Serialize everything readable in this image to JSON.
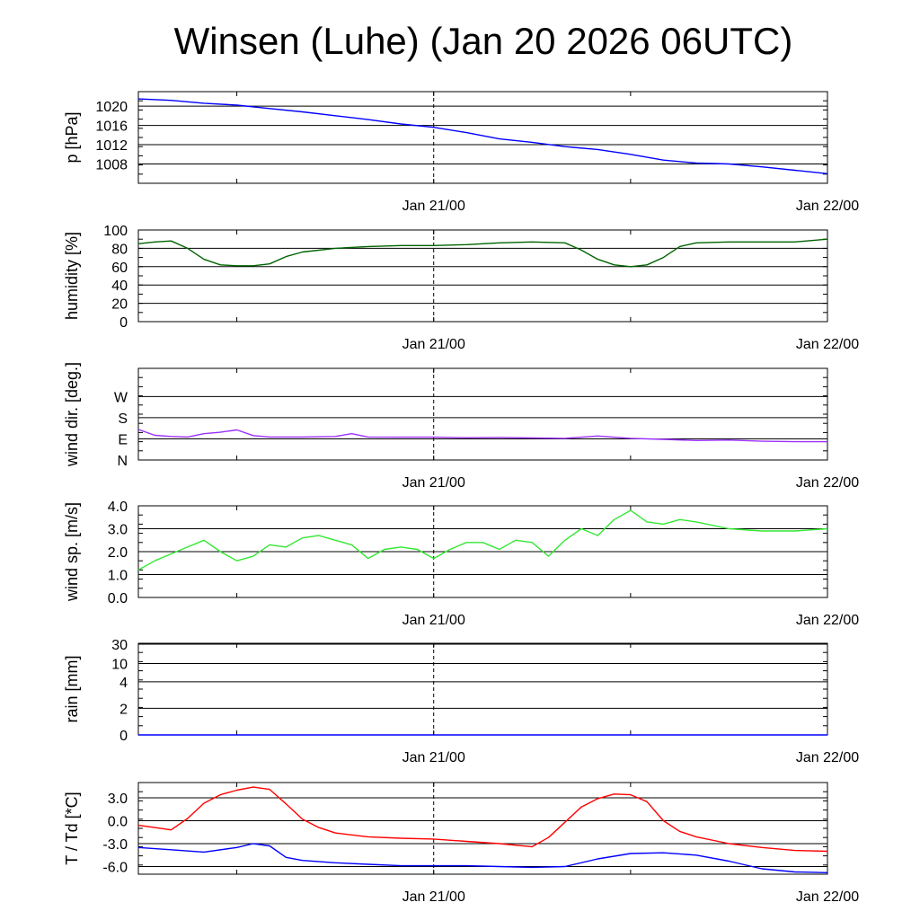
{
  "title": "Winsen (Luhe) (Jan 20 2026 06UTC)",
  "x_axis": {
    "tick_labels": [
      "Jan 21/00",
      "Jan 22/00"
    ],
    "start": "Jan 20 2026 06UTC",
    "end": "Jan 22 2026 00UTC",
    "midnight_marker": "Jan 21/00"
  },
  "chart_data": [
    {
      "type": "line",
      "ylabel": "p [hPa]",
      "ylim": [
        1004,
        1023
      ],
      "yticks": [
        1008,
        1012,
        1016,
        1020
      ],
      "grid": true,
      "series": [
        {
          "color": "#0000ff",
          "x": [
            "2026-01-20 06:00",
            "2026-01-20 08:00",
            "2026-01-20 10:00",
            "2026-01-20 12:00",
            "2026-01-20 14:00",
            "2026-01-20 16:00",
            "2026-01-20 18:00",
            "2026-01-20 20:00",
            "2026-01-20 22:00",
            "2026-01-21 00:00",
            "2026-01-21 02:00",
            "2026-01-21 04:00",
            "2026-01-21 06:00",
            "2026-01-21 08:00",
            "2026-01-21 10:00",
            "2026-01-21 12:00",
            "2026-01-21 14:00",
            "2026-01-21 16:00",
            "2026-01-21 18:00",
            "2026-01-21 20:00",
            "2026-01-21 22:00",
            "2026-01-22 00:00"
          ],
          "values": [
            1021.5,
            1021.2,
            1020.6,
            1020.2,
            1019.5,
            1018.8,
            1018.0,
            1017.2,
            1016.3,
            1015.6,
            1014.5,
            1013.2,
            1012.5,
            1011.6,
            1011.0,
            1010.0,
            1008.8,
            1008.2,
            1008.0,
            1007.4,
            1006.7,
            1006.0
          ]
        }
      ]
    },
    {
      "type": "line",
      "ylabel": "humidity [%]",
      "ylim": [
        0,
        100
      ],
      "yticks": [
        0,
        20,
        40,
        60,
        80,
        100
      ],
      "grid": true,
      "series": [
        {
          "color": "#006400",
          "x": [
            "2026-01-20 06:00",
            "2026-01-20 07:00",
            "2026-01-20 08:00",
            "2026-01-20 09:00",
            "2026-01-20 10:00",
            "2026-01-20 11:00",
            "2026-01-20 12:00",
            "2026-01-20 13:00",
            "2026-01-20 14:00",
            "2026-01-20 15:00",
            "2026-01-20 16:00",
            "2026-01-20 18:00",
            "2026-01-20 20:00",
            "2026-01-20 22:00",
            "2026-01-21 00:00",
            "2026-01-21 02:00",
            "2026-01-21 04:00",
            "2026-01-21 06:00",
            "2026-01-21 08:00",
            "2026-01-21 09:00",
            "2026-01-21 10:00",
            "2026-01-21 11:00",
            "2026-01-21 12:00",
            "2026-01-21 13:00",
            "2026-01-21 14:00",
            "2026-01-21 15:00",
            "2026-01-21 16:00",
            "2026-01-21 18:00",
            "2026-01-21 20:00",
            "2026-01-21 22:00",
            "2026-01-22 00:00"
          ],
          "values": [
            85,
            87,
            88,
            80,
            68,
            62,
            61,
            61,
            63,
            71,
            76,
            80,
            82,
            83,
            83,
            84,
            86,
            87,
            86,
            78,
            68,
            62,
            60,
            62,
            70,
            82,
            86,
            87,
            87,
            87,
            90
          ]
        }
      ]
    },
    {
      "type": "line",
      "ylabel": "wind dir. [deg.]",
      "ylim": [
        0,
        390
      ],
      "yticks": [
        0,
        90,
        180,
        270
      ],
      "ytick_labels": [
        "N",
        "E",
        "S",
        "W"
      ],
      "grid": true,
      "series": [
        {
          "color": "#9b30ff",
          "x": [
            "2026-01-20 06:00",
            "2026-01-20 07:00",
            "2026-01-20 08:00",
            "2026-01-20 09:00",
            "2026-01-20 10:00",
            "2026-01-20 11:00",
            "2026-01-20 12:00",
            "2026-01-20 13:00",
            "2026-01-20 14:00",
            "2026-01-20 16:00",
            "2026-01-20 18:00",
            "2026-01-20 19:00",
            "2026-01-20 20:00",
            "2026-01-20 22:00",
            "2026-01-21 00:00",
            "2026-01-21 02:00",
            "2026-01-21 04:00",
            "2026-01-21 06:00",
            "2026-01-21 08:00",
            "2026-01-21 10:00",
            "2026-01-21 12:00",
            "2026-01-21 14:00",
            "2026-01-21 16:00",
            "2026-01-21 18:00",
            "2026-01-21 20:00",
            "2026-01-21 22:00",
            "2026-01-22 00:00"
          ],
          "values": [
            130,
            105,
            100,
            98,
            112,
            118,
            128,
            104,
            98,
            98,
            100,
            112,
            98,
            97,
            97,
            95,
            96,
            94,
            92,
            102,
            92,
            88,
            83,
            85,
            80,
            78,
            78
          ]
        }
      ]
    },
    {
      "type": "line",
      "ylabel": "wind sp. [m/s]",
      "ylim": [
        0,
        4
      ],
      "yticks": [
        0,
        1,
        2,
        3,
        4
      ],
      "ytick_labels": [
        "0.0",
        "1.0",
        "2.0",
        "3.0",
        "4.0"
      ],
      "grid": true,
      "series": [
        {
          "color": "#33e833",
          "x": [
            "2026-01-20 06:00",
            "2026-01-20 07:00",
            "2026-01-20 08:00",
            "2026-01-20 09:00",
            "2026-01-20 10:00",
            "2026-01-20 11:00",
            "2026-01-20 12:00",
            "2026-01-20 13:00",
            "2026-01-20 14:00",
            "2026-01-20 15:00",
            "2026-01-20 16:00",
            "2026-01-20 17:00",
            "2026-01-20 18:00",
            "2026-01-20 19:00",
            "2026-01-20 20:00",
            "2026-01-20 21:00",
            "2026-01-20 22:00",
            "2026-01-20 23:00",
            "2026-01-21 00:00",
            "2026-01-21 01:00",
            "2026-01-21 02:00",
            "2026-01-21 03:00",
            "2026-01-21 04:00",
            "2026-01-21 05:00",
            "2026-01-21 06:00",
            "2026-01-21 07:00",
            "2026-01-21 08:00",
            "2026-01-21 09:00",
            "2026-01-21 10:00",
            "2026-01-21 11:00",
            "2026-01-21 12:00",
            "2026-01-21 13:00",
            "2026-01-21 14:00",
            "2026-01-21 15:00",
            "2026-01-21 16:00",
            "2026-01-21 18:00",
            "2026-01-21 20:00",
            "2026-01-21 22:00",
            "2026-01-22 00:00"
          ],
          "values": [
            1.2,
            1.6,
            1.9,
            2.2,
            2.5,
            2.0,
            1.6,
            1.8,
            2.3,
            2.2,
            2.6,
            2.7,
            2.5,
            2.3,
            1.7,
            2.1,
            2.2,
            2.1,
            1.7,
            2.1,
            2.4,
            2.4,
            2.1,
            2.5,
            2.4,
            1.8,
            2.5,
            3.0,
            2.7,
            3.4,
            3.8,
            3.3,
            3.2,
            3.4,
            3.3,
            3.0,
            2.9,
            2.9,
            3.0
          ]
        }
      ]
    },
    {
      "type": "line",
      "ylabel": "rain [mm]",
      "scale": "nonlinear",
      "yticks": [
        0,
        2,
        4,
        10,
        30
      ],
      "grid": true,
      "series": [
        {
          "color": "#0000ff",
          "x": [
            "2026-01-20 06:00",
            "2026-01-22 00:00"
          ],
          "values": [
            0,
            0
          ]
        }
      ]
    },
    {
      "type": "line",
      "ylabel": "T / Td [*C]",
      "ylim": [
        -7,
        5
      ],
      "yticks": [
        -6,
        -3,
        0,
        3
      ],
      "ytick_labels": [
        "-6.0",
        "-3.0",
        "0.0",
        "3.0"
      ],
      "grid": true,
      "series": [
        {
          "color": "#ff0000",
          "x": [
            "2026-01-20 06:00",
            "2026-01-20 07:00",
            "2026-01-20 08:00",
            "2026-01-20 09:00",
            "2026-01-20 10:00",
            "2026-01-20 11:00",
            "2026-01-20 12:00",
            "2026-01-20 13:00",
            "2026-01-20 14:00",
            "2026-01-20 15:00",
            "2026-01-20 16:00",
            "2026-01-20 17:00",
            "2026-01-20 18:00",
            "2026-01-20 20:00",
            "2026-01-20 22:00",
            "2026-01-21 00:00",
            "2026-01-21 02:00",
            "2026-01-21 04:00",
            "2026-01-21 06:00",
            "2026-01-21 07:00",
            "2026-01-21 08:00",
            "2026-01-21 09:00",
            "2026-01-21 10:00",
            "2026-01-21 11:00",
            "2026-01-21 12:00",
            "2026-01-21 13:00",
            "2026-01-21 14:00",
            "2026-01-21 15:00",
            "2026-01-21 16:00",
            "2026-01-21 18:00",
            "2026-01-21 20:00",
            "2026-01-21 22:00",
            "2026-01-22 00:00"
          ],
          "values": [
            -0.6,
            -0.9,
            -1.2,
            0.3,
            2.3,
            3.4,
            4.0,
            4.4,
            4.1,
            2.2,
            0.2,
            -0.9,
            -1.6,
            -2.1,
            -2.3,
            -2.4,
            -2.7,
            -3.0,
            -3.4,
            -2.2,
            -0.2,
            1.8,
            2.9,
            3.5,
            3.4,
            2.5,
            0.0,
            -1.4,
            -2.1,
            -3.0,
            -3.5,
            -3.9,
            -4.0
          ]
        },
        {
          "color": "#0000ff",
          "x": [
            "2026-01-20 06:00",
            "2026-01-20 08:00",
            "2026-01-20 10:00",
            "2026-01-20 12:00",
            "2026-01-20 13:00",
            "2026-01-20 14:00",
            "2026-01-20 15:00",
            "2026-01-20 16:00",
            "2026-01-20 18:00",
            "2026-01-20 20:00",
            "2026-01-20 22:00",
            "2026-01-21 00:00",
            "2026-01-21 02:00",
            "2026-01-21 04:00",
            "2026-01-21 06:00",
            "2026-01-21 08:00",
            "2026-01-21 10:00",
            "2026-01-21 12:00",
            "2026-01-21 14:00",
            "2026-01-21 16:00",
            "2026-01-21 18:00",
            "2026-01-21 20:00",
            "2026-01-21 22:00",
            "2026-01-22 00:00"
          ],
          "values": [
            -3.5,
            -3.8,
            -4.1,
            -3.5,
            -3.0,
            -3.3,
            -4.8,
            -5.2,
            -5.5,
            -5.7,
            -5.9,
            -5.9,
            -5.9,
            -6.0,
            -6.1,
            -6.0,
            -5.0,
            -4.3,
            -4.2,
            -4.5,
            -5.3,
            -6.3,
            -6.7,
            -6.8
          ]
        }
      ]
    }
  ]
}
